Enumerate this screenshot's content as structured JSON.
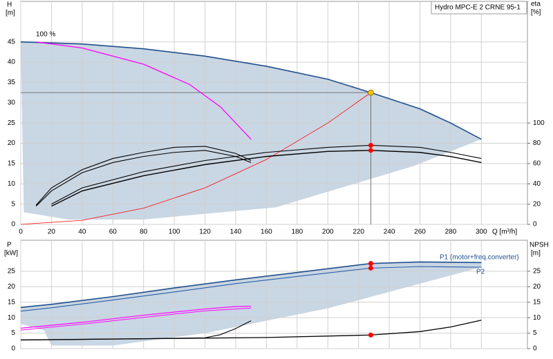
{
  "chart_data": [
    {
      "type": "line",
      "ylabel": "H",
      "yunit": "[m]",
      "y2label": "eta",
      "y2unit": "[%]",
      "xlabel": "Q [m³/h]",
      "legend_box": "Hydro MPC-E 2 CRNE 95-1",
      "annotation": "100 %",
      "xlim": [
        0,
        330
      ],
      "xticks": [
        0,
        20,
        40,
        60,
        80,
        100,
        120,
        140,
        160,
        180,
        200,
        220,
        240,
        260,
        280,
        300
      ],
      "ylim": [
        0,
        55
      ],
      "yticks": [
        0,
        5,
        10,
        15,
        20,
        25,
        30,
        35,
        40,
        45
      ],
      "y2lim": [
        0,
        220
      ],
      "y2ticks": [
        0,
        20,
        40,
        60,
        80,
        100
      ],
      "grid": true,
      "region": {
        "color": "#c9d6e3",
        "x": [
          0,
          40,
          80,
          120,
          160,
          200,
          228,
          260,
          280,
          300,
          256,
          166,
          80,
          31,
          2
        ],
        "values": [
          45,
          44.5,
          43.3,
          41.5,
          39,
          35.8,
          32.5,
          28.5,
          25,
          21,
          14.4,
          4.2,
          1.2,
          1.2,
          3
        ]
      },
      "series": [
        {
          "color": "#1f4e8c",
          "width": 1.6,
          "x": [
            0,
            40,
            80,
            120,
            160,
            200,
            228,
            260,
            280,
            300
          ],
          "values": [
            45,
            44.5,
            43.3,
            41.5,
            39,
            35.8,
            32.5,
            28.5,
            25,
            21
          ]
        },
        {
          "color": "#ff00ff",
          "width": 1.3,
          "x": [
            10,
            40,
            80,
            110,
            130,
            150
          ],
          "values": [
            45,
            43.5,
            39.5,
            34.5,
            29,
            21
          ]
        },
        {
          "color": "#ff0000",
          "width": 0.8,
          "x": [
            0,
            40,
            80,
            120,
            160,
            200,
            228
          ],
          "values": [
            0,
            1,
            4,
            9,
            16,
            25,
            32.5
          ]
        },
        {
          "color": "#000000",
          "width": 1.1,
          "axis": "y2",
          "x": [
            10,
            20,
            40,
            60,
            80,
            100,
            120,
            140,
            150
          ],
          "values": [
            19,
            36,
            54,
            65,
            71,
            76,
            77,
            70,
            63
          ]
        },
        {
          "color": "#000000",
          "width": 1.1,
          "axis": "y2",
          "x": [
            10,
            20,
            40,
            60,
            80,
            100,
            120,
            140,
            150
          ],
          "values": [
            18,
            33,
            51,
            61,
            67,
            71,
            73,
            67,
            61
          ]
        },
        {
          "color": "#000000",
          "width": 1.1,
          "axis": "y2",
          "x": [
            20,
            40,
            80,
            120,
            160,
            200,
            228,
            260,
            280,
            300
          ],
          "values": [
            20,
            36,
            52,
            63,
            71,
            76,
            78,
            76,
            71,
            65
          ]
        },
        {
          "color": "#000000",
          "width": 1.4,
          "axis": "y2",
          "x": [
            20,
            40,
            80,
            120,
            160,
            200,
            228,
            260,
            280,
            300
          ],
          "values": [
            18,
            33,
            48,
            59,
            67,
            72,
            73,
            71,
            67,
            61
          ]
        }
      ],
      "operating_point": {
        "x": 228,
        "y": 32.5,
        "color": "#f5c400"
      },
      "points": [
        {
          "x": 228,
          "y": 78,
          "axis": "y2",
          "color": "#ff0000"
        },
        {
          "x": 228,
          "y": 73,
          "axis": "y2",
          "color": "#ff0000"
        }
      ]
    },
    {
      "type": "line",
      "ylabel": "P",
      "yunit": "[kW]",
      "y2label": "NPSH",
      "y2unit": "[m]",
      "xlim": [
        0,
        330
      ],
      "ylim": [
        0,
        35
      ],
      "yticks": [
        0,
        5,
        10,
        15,
        20,
        25
      ],
      "y2lim": [
        0,
        35
      ],
      "y2ticks": [
        0,
        5,
        10,
        15,
        20,
        25
      ],
      "grid": true,
      "region": {
        "color": "#c9d6e3",
        "x": [
          0,
          20,
          60,
          100,
          140,
          180,
          228,
          260,
          300,
          300,
          200,
          120,
          60,
          20,
          15,
          0
        ],
        "values": [
          13.3,
          14.3,
          16.8,
          19.6,
          22.2,
          24.6,
          27.5,
          28,
          27.8,
          26.3,
          13,
          5,
          1,
          1,
          6,
          8
        ]
      },
      "series": [
        {
          "name": "P1 (motor+freq.converter)",
          "color": "#1f4e8c",
          "width": 1.6,
          "x": [
            0,
            20,
            60,
            100,
            140,
            180,
            228,
            260,
            300
          ],
          "values": [
            13.3,
            14.3,
            16.8,
            19.6,
            22.2,
            24.6,
            27.5,
            28,
            27.8
          ]
        },
        {
          "name": "P2",
          "color": "#2a5fa8",
          "width": 1.1,
          "x": [
            0,
            20,
            60,
            100,
            140,
            180,
            228,
            260,
            300
          ],
          "values": [
            12.1,
            13.2,
            15.7,
            18.3,
            21,
            23.3,
            26,
            26.5,
            26.3
          ]
        },
        {
          "color": "#ff00ff",
          "width": 1.2,
          "x": [
            0,
            40,
            80,
            120,
            140,
            150
          ],
          "values": [
            6.6,
            8.5,
            10.8,
            12.8,
            13.6,
            13.7
          ]
        },
        {
          "color": "#ff00ff",
          "width": 1.0,
          "x": [
            0,
            40,
            80,
            120,
            150
          ],
          "values": [
            6,
            7.9,
            10.1,
            12.2,
            13.1
          ]
        },
        {
          "color": "#000000",
          "width": 1.1,
          "axis": "y2",
          "x": [
            0,
            40,
            80,
            120,
            130,
            140,
            150
          ],
          "values": [
            2.8,
            3,
            3.2,
            3.5,
            4.5,
            6.5,
            9
          ]
        },
        {
          "color": "#000000",
          "width": 1.3,
          "axis": "y2",
          "x": [
            0,
            80,
            160,
            228,
            260,
            280,
            300
          ],
          "values": [
            2.8,
            3.2,
            3.6,
            4.4,
            5.5,
            7,
            9.2
          ]
        }
      ],
      "points": [
        {
          "x": 228,
          "y": 27.5,
          "color": "#ff0000"
        },
        {
          "x": 228,
          "y": 26,
          "color": "#ff0000"
        },
        {
          "x": 228,
          "y": 4.4,
          "axis": "y2",
          "color": "#ff0000"
        }
      ]
    }
  ]
}
